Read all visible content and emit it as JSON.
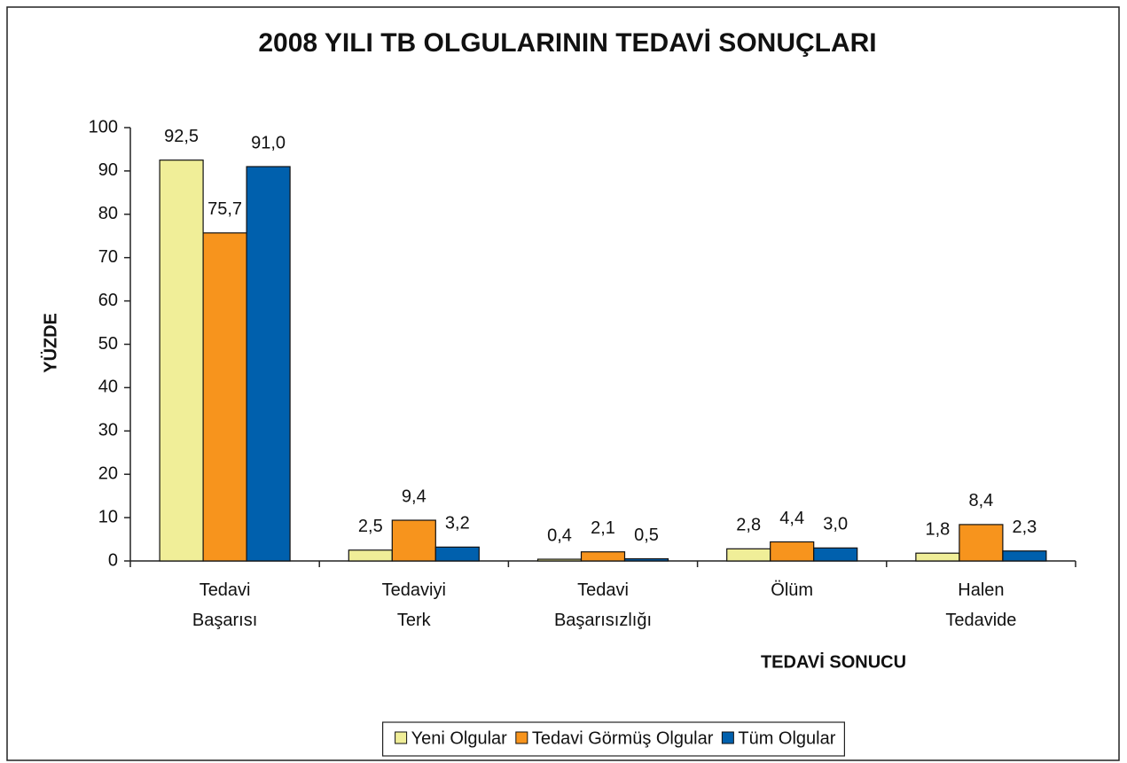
{
  "chart_data": {
    "type": "bar",
    "title": "2008 YILI TB OLGULARININ TEDAVİ SONUÇLARI",
    "y_label": "YÜZDE",
    "x_label": "TEDAVİ SONUCU",
    "categories": [
      "Tedavi\nBaşarısı",
      "Tedaviyi\nTerk",
      "Tedavi\nBaşarısızlığı",
      "Ölüm",
      "Halen\nTedavide"
    ],
    "series": [
      {
        "name": "Yeni Olgular",
        "color": "#f0ee98",
        "values": [
          92.5,
          2.5,
          0.4,
          2.8,
          1.8
        ],
        "value_labels": [
          "92,5",
          "2,5",
          "0,4",
          "2,8",
          "1,8"
        ]
      },
      {
        "name": "Tedavi Görmüş Olgular",
        "color": "#f7941d",
        "values": [
          75.7,
          9.4,
          2.1,
          4.4,
          8.4
        ],
        "value_labels": [
          "75,7",
          "9,4",
          "2,1",
          "4,4",
          "8,4"
        ]
      },
      {
        "name": "Tüm Olgular",
        "color": "#0060ad",
        "values": [
          91.0,
          3.2,
          0.5,
          3.0,
          2.3
        ],
        "value_labels": [
          "91,0",
          "3,2",
          "0,5",
          "3,0",
          "2,3"
        ]
      }
    ],
    "ylim": [
      0,
      100
    ],
    "yticks": [
      0,
      10,
      20,
      30,
      40,
      50,
      60,
      70,
      80,
      90,
      100
    ],
    "grid": false,
    "legend": "bottom"
  }
}
